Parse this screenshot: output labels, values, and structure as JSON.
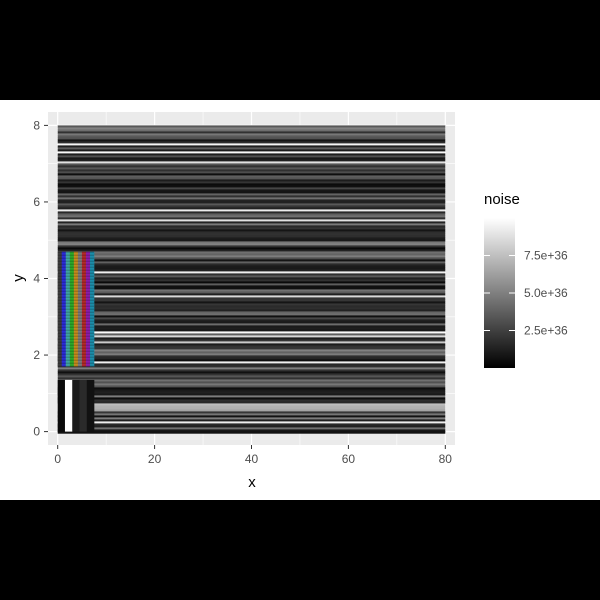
{
  "chart_data": {
    "type": "heatmap",
    "title": "",
    "xlabel": "x",
    "ylabel": "y",
    "xlim": [
      -2,
      82
    ],
    "ylim": [
      -0.35,
      8.35
    ],
    "x_ticks": [
      "0",
      "20",
      "40",
      "60",
      "80"
    ],
    "x_tick_values": [
      0,
      20,
      40,
      60,
      80
    ],
    "y_ticks": [
      "0",
      "2",
      "4",
      "6",
      "8"
    ],
    "y_tick_values": [
      0,
      2,
      4,
      6,
      8
    ],
    "grid": true,
    "legend": {
      "title": "noise",
      "position": "right",
      "min": 0,
      "max": 10000000000000000000000000000000000000,
      "breaks": [
        2.5e+36,
        5e+36,
        7.5e+36
      ],
      "labels": [
        "2.5e+36",
        "5.0e+36",
        "7.5e+36"
      ],
      "colors": [
        "#000000",
        "#ffffff"
      ]
    },
    "raster": {
      "x_range": [
        0,
        80
      ],
      "y_range": [
        0,
        8
      ],
      "color_bars": {
        "x_range": [
          0,
          7.5
        ],
        "y_range": [
          1.7,
          4.7
        ],
        "colors": [
          "#3c3c3c",
          "#2b2bd6",
          "#3fa3a3",
          "#2aa82a",
          "#c28a1c",
          "#7a7a7a",
          "#b12a2a",
          "#8c1ca8",
          "#1c8ca8"
        ]
      },
      "pluge_block": {
        "x_range": [
          0,
          7.5
        ],
        "y_range": [
          0,
          1.35
        ],
        "colors": [
          "#0a0a0a",
          "#ffffff",
          "#1a1a1a",
          "#2a2a2a",
          "#111111"
        ]
      },
      "bright_band": {
        "y_range": [
          0.55,
          0.75
        ]
      }
    }
  }
}
